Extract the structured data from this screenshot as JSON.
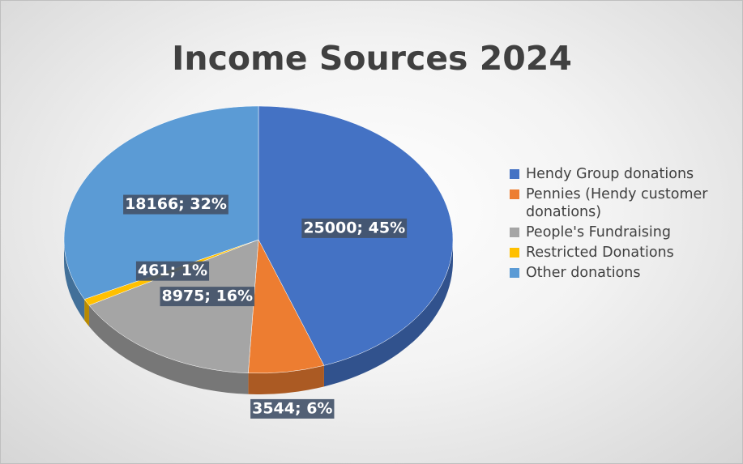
{
  "chart_data": {
    "type": "pie",
    "title": "Income Sources 2024",
    "categories": [
      "Hendy Group donations",
      "Pennies (Hendy customer donations)",
      "People's Fundraising",
      "Restricted Donations",
      "Other donations"
    ],
    "values": [
      25000,
      3544,
      8975,
      461,
      18166
    ],
    "value_labels": [
      "25000; 45%",
      "3544; 6%",
      "8975; 16%",
      "461; 1%",
      "18166; 32%"
    ],
    "colors": [
      "#4472c4",
      "#ed7d31",
      "#a5a5a5",
      "#ffc000",
      "#5b9bd5"
    ],
    "legend": "right"
  }
}
